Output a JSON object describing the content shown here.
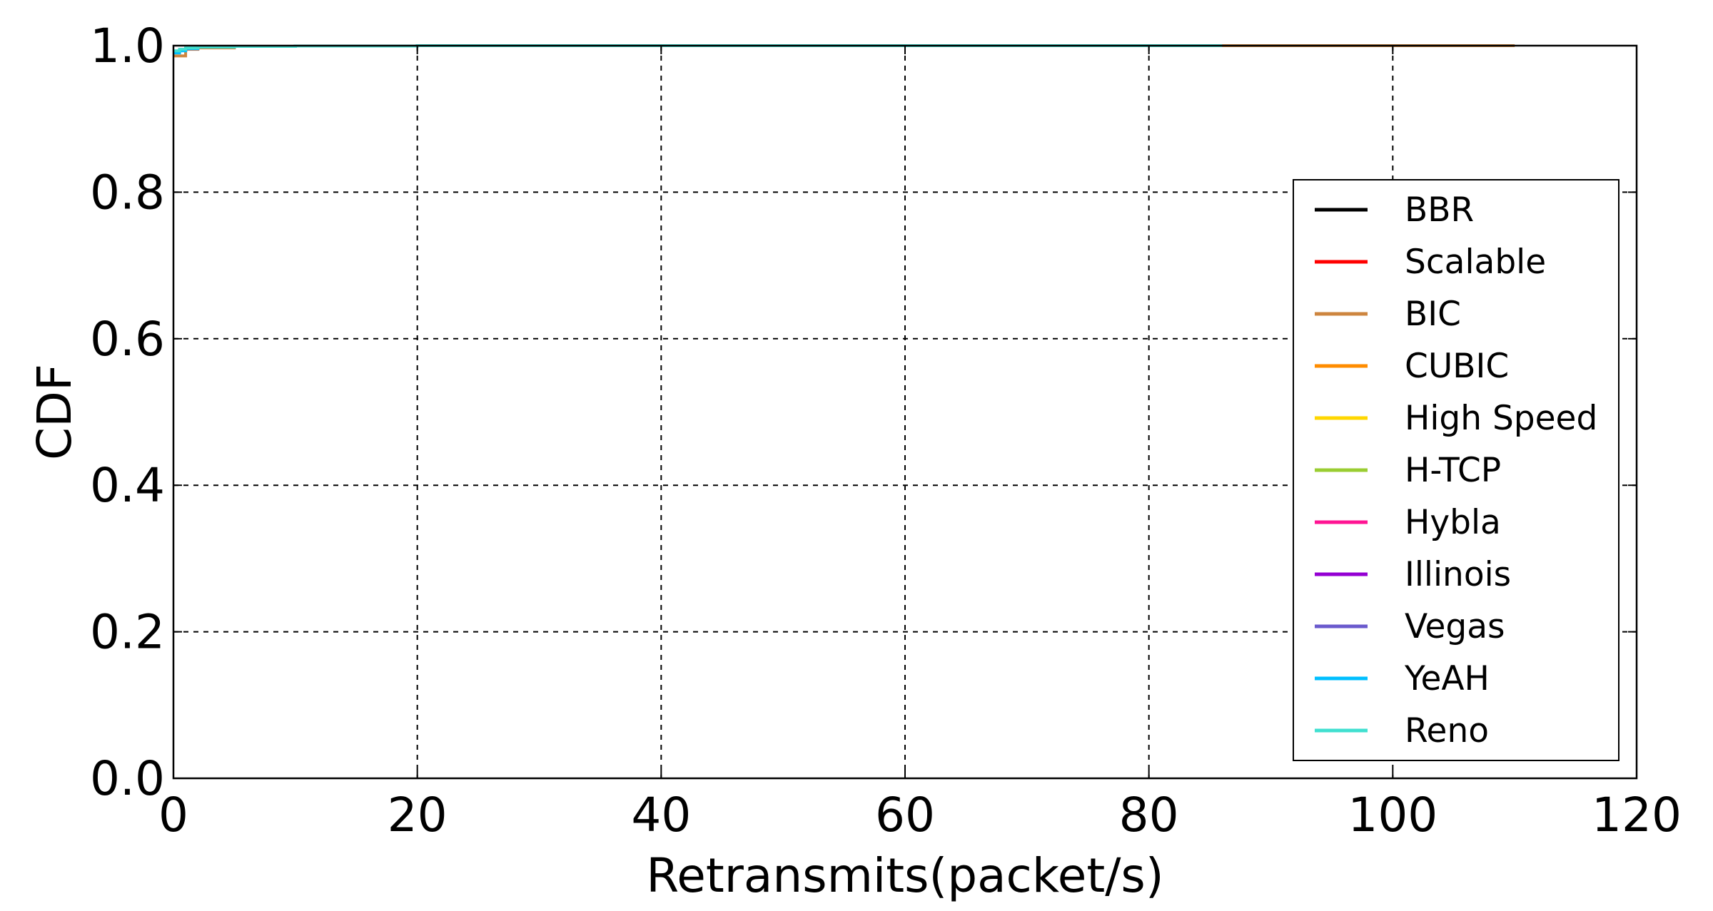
{
  "chart_data": {
    "type": "line",
    "title": "",
    "xlabel": "Retransmits(packet/s)",
    "ylabel": "CDF",
    "xlim": [
      0,
      120
    ],
    "ylim": [
      0.0,
      1.0
    ],
    "xticks": [
      0,
      20,
      40,
      60,
      80,
      100,
      120
    ],
    "yticks": [
      0.0,
      0.2,
      0.4,
      0.6,
      0.8,
      1.0
    ],
    "x_tick_labels": [
      "0",
      "20",
      "40",
      "60",
      "80",
      "100",
      "120"
    ],
    "y_tick_labels": [
      "0.0",
      "0.2",
      "0.4",
      "0.6",
      "0.8",
      "1.0"
    ],
    "grid": true,
    "legend_position": "right",
    "series": [
      {
        "name": "BBR",
        "color": "#000000",
        "x": [
          0,
          0.5,
          1,
          2,
          5,
          10,
          20,
          40,
          60,
          80,
          86
        ],
        "y": [
          0.992,
          0.994,
          0.996,
          0.998,
          0.999,
          0.9995,
          1.0,
          1.0,
          1.0,
          1.0,
          1.0
        ]
      },
      {
        "name": "Scalable",
        "color": "#ff0000",
        "x": [
          0,
          0.5,
          1,
          2,
          5,
          10,
          20,
          40,
          60,
          80,
          86
        ],
        "y": [
          0.992,
          0.994,
          0.996,
          0.998,
          0.999,
          0.9995,
          1.0,
          1.0,
          1.0,
          1.0,
          1.0
        ]
      },
      {
        "name": "BIC",
        "color": "#cd853f",
        "x": [
          0,
          1,
          1,
          2,
          5,
          10,
          20,
          40,
          60,
          80,
          100,
          110
        ],
        "y": [
          0.986,
          0.986,
          0.995,
          0.997,
          0.999,
          0.9995,
          1.0,
          1.0,
          1.0,
          1.0,
          1.0,
          1.0
        ]
      },
      {
        "name": "CUBIC",
        "color": "#ff8c00",
        "x": [
          0,
          0.5,
          1,
          2,
          5,
          10,
          20,
          40,
          60,
          80,
          86
        ],
        "y": [
          0.992,
          0.994,
          0.996,
          0.998,
          0.999,
          0.9995,
          1.0,
          1.0,
          1.0,
          1.0,
          1.0
        ]
      },
      {
        "name": "High Speed",
        "color": "#ffd700",
        "x": [
          0,
          0.5,
          1,
          2,
          5,
          10,
          20,
          40,
          60,
          80,
          86
        ],
        "y": [
          0.992,
          0.994,
          0.996,
          0.998,
          0.999,
          0.9995,
          1.0,
          1.0,
          1.0,
          1.0,
          1.0
        ]
      },
      {
        "name": "H-TCP",
        "color": "#9acd32",
        "x": [
          0,
          0.5,
          1,
          2,
          5,
          10,
          20,
          40,
          60,
          80,
          86
        ],
        "y": [
          0.992,
          0.994,
          0.996,
          0.998,
          0.999,
          0.9995,
          1.0,
          1.0,
          1.0,
          1.0,
          1.0
        ]
      },
      {
        "name": "Hybla",
        "color": "#ff1493",
        "x": [
          0,
          0.5,
          1,
          2,
          5,
          10,
          20,
          40,
          60,
          80,
          86
        ],
        "y": [
          0.992,
          0.994,
          0.996,
          0.998,
          0.999,
          0.9995,
          1.0,
          1.0,
          1.0,
          1.0,
          1.0
        ]
      },
      {
        "name": "Illinois",
        "color": "#9400d3",
        "x": [
          0,
          0.5,
          1,
          2,
          5,
          10,
          20,
          40,
          60,
          80,
          86
        ],
        "y": [
          0.992,
          0.994,
          0.996,
          0.998,
          0.999,
          0.9995,
          1.0,
          1.0,
          1.0,
          1.0,
          1.0
        ]
      },
      {
        "name": "Vegas",
        "color": "#6a5acd",
        "x": [
          0,
          0.5,
          1,
          2,
          5,
          10,
          20,
          40,
          60,
          80,
          86
        ],
        "y": [
          0.992,
          0.994,
          0.996,
          0.998,
          0.999,
          0.9995,
          1.0,
          1.0,
          1.0,
          1.0,
          1.0
        ]
      },
      {
        "name": "YeAH",
        "color": "#00bfff",
        "x": [
          0,
          0.5,
          1,
          2,
          5,
          10,
          20,
          40,
          60,
          80,
          86
        ],
        "y": [
          0.99,
          0.993,
          0.996,
          0.998,
          0.999,
          0.9995,
          1.0,
          1.0,
          1.0,
          1.0,
          1.0
        ]
      },
      {
        "name": "Reno",
        "color": "#40e0d0",
        "x": [
          0,
          0.5,
          1,
          2,
          5,
          10,
          20,
          40,
          60,
          80,
          86
        ],
        "y": [
          0.993,
          0.995,
          0.997,
          0.998,
          0.999,
          0.9995,
          1.0,
          1.0,
          1.0,
          1.0,
          1.0
        ]
      }
    ]
  }
}
